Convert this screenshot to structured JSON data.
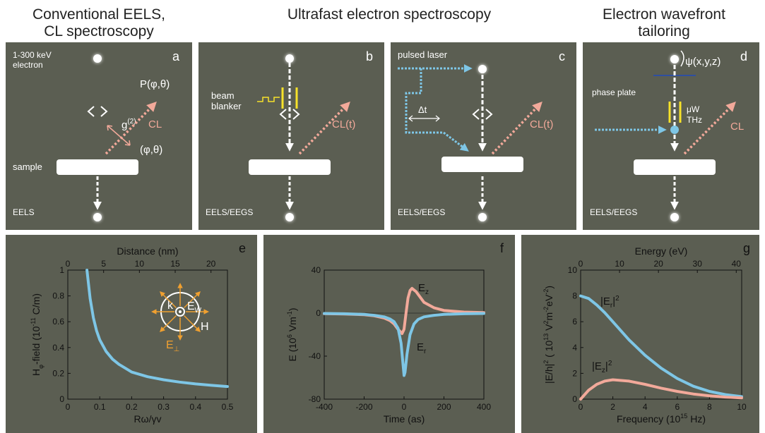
{
  "headers": {
    "a": [
      "Conventional EELS,",
      "CL spectroscopy"
    ],
    "b_c": "Ultrafast electron spectroscopy",
    "d": [
      "Electron wavefront",
      "tailoring"
    ]
  },
  "panel_a": {
    "letter": "a",
    "energy_label": [
      "1-300 keV",
      "electron"
    ],
    "p_label": "P(φ,θ)",
    "g2_label": "g",
    "g2_sup": "(2)",
    "cl_label": "CL",
    "angle_label": "(φ,θ)",
    "sample_label": "sample",
    "bottom_label": "EELS"
  },
  "panel_b": {
    "letter": "b",
    "blanker_label": [
      "beam",
      "blanker"
    ],
    "cl_label": "CL(t)",
    "bottom_label": "EELS/EEGS"
  },
  "panel_c": {
    "letter": "c",
    "laser_label": "pulsed laser",
    "delay_label": "Δt",
    "cl_label": "CL(t)",
    "bottom_label": "EELS/EEGS"
  },
  "panel_d": {
    "letter": "d",
    "psi_label": "ψ(x,y,z)",
    "phase_plate_label": "phase plate",
    "uw_label": "μW",
    "thz_label": "THz",
    "cl_label": "CL",
    "bottom_label": "EELS/EEGS"
  },
  "colors": {
    "panel": "#5b5e52",
    "cyan": "#7ec6e6",
    "salmon": "#f2a99a",
    "yellow": "#f7e22a",
    "orange": "#f0a030"
  },
  "chart_data": [
    {
      "type": "line",
      "panel": "e",
      "xlabel": "Rω/γv",
      "ylabel_parts": [
        "H",
        "φ",
        "-field (10",
        "-11",
        " C/m)"
      ],
      "top_xlabel": "Distance (nm)",
      "xlim": [
        0,
        0.5
      ],
      "ylim": [
        0,
        1
      ],
      "x_ticks": [
        "0",
        "0.1",
        "0.2",
        "0.3",
        "0.4",
        "0.5"
      ],
      "y_ticks": [
        "0",
        "0.2",
        "0.4",
        "0.6",
        "0.8",
        "1"
      ],
      "top_ticks": [
        "0",
        "5",
        "10",
        "15",
        "20"
      ],
      "top_tick_values": [
        0,
        5,
        10,
        15,
        20
      ],
      "top_max": 22.3,
      "inset_labels": {
        "k": "k",
        "ew": "E",
        "ew_sub": "W",
        "h": "H",
        "eperp": "E",
        "eperp_sub": "⊥"
      },
      "series": [
        {
          "color": "#7ec6e6",
          "x": [
            0.06,
            0.07,
            0.08,
            0.09,
            0.1,
            0.12,
            0.14,
            0.16,
            0.18,
            0.2,
            0.25,
            0.3,
            0.35,
            0.4,
            0.45,
            0.5
          ],
          "y": [
            1.0,
            0.78,
            0.63,
            0.53,
            0.46,
            0.37,
            0.31,
            0.27,
            0.24,
            0.21,
            0.174,
            0.15,
            0.132,
            0.118,
            0.107,
            0.098
          ]
        }
      ]
    },
    {
      "type": "line",
      "panel": "f",
      "xlabel": "Time (as)",
      "ylabel_parts": [
        "E (10",
        "6",
        " Vm",
        "-1",
        ")"
      ],
      "xlim": [
        -400,
        400
      ],
      "ylim": [
        -80,
        40
      ],
      "x_ticks": [
        "-400",
        "-200",
        "0",
        "200",
        "400"
      ],
      "y_ticks": [
        "-80",
        "-40",
        "0",
        "40"
      ],
      "ez_label": "E",
      "ez_sub": "z",
      "er_label": "E",
      "er_sub": "r",
      "series": [
        {
          "color": "#f2a99a",
          "x": [
            -400,
            -300,
            -200,
            -150,
            -100,
            -70,
            -50,
            -30,
            -10,
            0,
            10,
            20,
            30,
            40,
            60,
            80,
            100,
            150,
            200,
            300,
            400
          ],
          "y": [
            -0.5,
            -0.8,
            -1.5,
            -2.5,
            -4.5,
            -7,
            -10,
            -15,
            -19,
            -15,
            0,
            14,
            21,
            23,
            20,
            15,
            10,
            5,
            2.5,
            1,
            0.5
          ]
        },
        {
          "color": "#7ec6e6",
          "x": [
            -400,
            -300,
            -200,
            -150,
            -100,
            -70,
            -50,
            -30,
            -15,
            -5,
            0,
            5,
            15,
            30,
            50,
            70,
            100,
            150,
            200,
            300,
            400
          ],
          "y": [
            -0.3,
            -0.6,
            -1.2,
            -2,
            -3.5,
            -5.5,
            -8,
            -14,
            -28,
            -48,
            -58,
            -55,
            -38,
            -20,
            -10,
            -6,
            -3.5,
            -2,
            -1.2,
            -0.6,
            -0.3
          ]
        }
      ]
    },
    {
      "type": "line",
      "panel": "g",
      "xlabel_parts": [
        "Frequency (10",
        "15",
        " Hz)"
      ],
      "ylabel_parts": [
        "|E/h|",
        "2",
        " ( 10",
        "13",
        " V",
        "2",
        "m",
        "-2",
        "eV",
        "-2",
        ")"
      ],
      "top_xlabel": "Energy (eV)",
      "xlim": [
        0,
        10
      ],
      "ylim": [
        0,
        10
      ],
      "x_ticks": [
        "0",
        "2",
        "4",
        "6",
        "8",
        "10"
      ],
      "y_ticks": [
        "0",
        "2",
        "4",
        "6",
        "8",
        "10"
      ],
      "top_ticks": [
        "0",
        "10",
        "20",
        "30",
        "40"
      ],
      "top_tick_values": [
        0,
        10,
        20,
        30,
        40
      ],
      "top_max": 41.4,
      "er_label": "|E",
      "er_sub": "r",
      "er_tail": "|",
      "er_sup": "2",
      "ez_label": "|E",
      "ez_sub": "z",
      "ez_tail": "|",
      "ez_sup": "2",
      "series": [
        {
          "color": "#7ec6e6",
          "x": [
            0,
            0.5,
            1,
            1.5,
            2,
            3,
            4,
            5,
            6,
            7,
            8,
            9,
            10
          ],
          "y": [
            8.0,
            7.8,
            7.3,
            6.7,
            6.0,
            4.6,
            3.4,
            2.4,
            1.6,
            1.0,
            0.6,
            0.35,
            0.2
          ]
        },
        {
          "color": "#f2a99a",
          "x": [
            0,
            0.5,
            1,
            1.5,
            2,
            3,
            4,
            5,
            6,
            7,
            8,
            9,
            10
          ],
          "y": [
            0,
            0.7,
            1.15,
            1.4,
            1.5,
            1.4,
            1.15,
            0.85,
            0.6,
            0.4,
            0.26,
            0.16,
            0.1
          ]
        }
      ]
    }
  ]
}
